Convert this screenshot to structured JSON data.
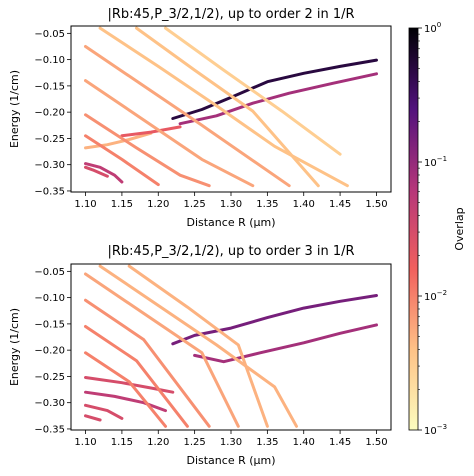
{
  "chart_data": [
    {
      "type": "line",
      "title": "|Rb:45,P_3/2,1/2), up to order 2 in 1/R",
      "xlabel": "Distance R (μm)",
      "ylabel": "Energy (1/cm)",
      "xlim": [
        1.08,
        1.52
      ],
      "ylim": [
        -0.352,
        -0.036
      ],
      "xticks": [
        "1.10",
        "1.15",
        "1.20",
        "1.25",
        "1.30",
        "1.35",
        "1.40",
        "1.45",
        "1.50"
      ],
      "yticks": [
        "-0.35",
        "-0.30",
        "-0.25",
        "-0.20",
        "-0.15",
        "-0.10",
        "-0.05"
      ],
      "series": [
        {
          "overlap": 0.5,
          "points": [
            [
              1.22,
              -0.212
            ],
            [
              1.26,
              -0.195
            ],
            [
              1.3,
              -0.172
            ],
            [
              1.35,
              -0.142
            ],
            [
              1.4,
              -0.126
            ],
            [
              1.45,
              -0.113
            ],
            [
              1.5,
              -0.101
            ]
          ]
        },
        {
          "overlap": 0.08,
          "points": [
            [
              1.23,
              -0.222
            ],
            [
              1.28,
              -0.207
            ],
            [
              1.33,
              -0.183
            ],
            [
              1.38,
              -0.164
            ],
            [
              1.44,
              -0.145
            ],
            [
              1.5,
              -0.127
            ]
          ]
        },
        {
          "overlap": 0.005,
          "points": [
            [
              1.1,
              -0.268
            ],
            [
              1.13,
              -0.262
            ],
            [
              1.16,
              -0.252
            ],
            [
              1.19,
              -0.24
            ]
          ]
        },
        {
          "overlap": 0.05,
          "points": [
            [
              1.1,
              -0.298
            ],
            [
              1.12,
              -0.305
            ],
            [
              1.14,
              -0.32
            ],
            [
              1.15,
              -0.333
            ]
          ]
        },
        {
          "overlap": 0.03,
          "points": [
            [
              1.1,
              -0.305
            ],
            [
              1.11,
              -0.31
            ],
            [
              1.13,
              -0.322
            ]
          ]
        },
        {
          "overlap": 0.02,
          "points": [
            [
              1.15,
              -0.245
            ],
            [
              1.19,
              -0.238
            ],
            [
              1.23,
              -0.228
            ]
          ]
        },
        {
          "overlap": 0.004,
          "points": [
            [
              1.12,
              -0.04
            ],
            [
              1.2,
              -0.113
            ],
            [
              1.28,
              -0.188
            ],
            [
              1.36,
              -0.265
            ],
            [
              1.46,
              -0.34
            ]
          ]
        },
        {
          "overlap": 0.004,
          "points": [
            [
              1.17,
              -0.04
            ],
            [
              1.25,
              -0.12
            ],
            [
              1.33,
              -0.198
            ],
            [
              1.42,
              -0.34
            ]
          ]
        },
        {
          "overlap": 0.003,
          "points": [
            [
              1.21,
              -0.04
            ],
            [
              1.29,
              -0.12
            ],
            [
              1.37,
              -0.198
            ],
            [
              1.45,
              -0.28
            ]
          ]
        },
        {
          "overlap": 0.006,
          "points": [
            [
              1.1,
              -0.075
            ],
            [
              1.18,
              -0.15
            ],
            [
              1.26,
              -0.225
            ],
            [
              1.38,
              -0.34
            ]
          ]
        },
        {
          "overlap": 0.006,
          "points": [
            [
              1.1,
              -0.14
            ],
            [
              1.18,
              -0.215
            ],
            [
              1.26,
              -0.29
            ],
            [
              1.33,
              -0.34
            ]
          ]
        },
        {
          "overlap": 0.008,
          "points": [
            [
              1.1,
              -0.205
            ],
            [
              1.17,
              -0.268
            ],
            [
              1.23,
              -0.32
            ],
            [
              1.27,
              -0.34
            ]
          ]
        },
        {
          "overlap": 0.01,
          "points": [
            [
              1.1,
              -0.245
            ],
            [
              1.15,
              -0.29
            ],
            [
              1.2,
              -0.338
            ]
          ]
        }
      ]
    },
    {
      "type": "line",
      "title": "|Rb:45,P_3/2,1/2), up to order 3 in 1/R",
      "xlabel": "Distance R (μm)",
      "ylabel": "Energy (1/cm)",
      "xlim": [
        1.08,
        1.52
      ],
      "ylim": [
        -0.352,
        -0.036
      ],
      "xticks": [
        "1.10",
        "1.15",
        "1.20",
        "1.25",
        "1.30",
        "1.35",
        "1.40",
        "1.45",
        "1.50"
      ],
      "yticks": [
        "-0.35",
        "-0.30",
        "-0.25",
        "-0.20",
        "-0.15",
        "-0.10",
        "-0.05"
      ],
      "series": [
        {
          "overlap": 0.15,
          "points": [
            [
              1.22,
              -0.188
            ],
            [
              1.25,
              -0.172
            ],
            [
              1.3,
              -0.158
            ],
            [
              1.35,
              -0.138
            ],
            [
              1.4,
              -0.12
            ],
            [
              1.45,
              -0.107
            ],
            [
              1.5,
              -0.096
            ]
          ]
        },
        {
          "overlap": 0.08,
          "points": [
            [
              1.25,
              -0.21
            ],
            [
              1.29,
              -0.222
            ],
            [
              1.34,
              -0.205
            ],
            [
              1.4,
              -0.186
            ],
            [
              1.45,
              -0.168
            ],
            [
              1.5,
              -0.152
            ]
          ]
        },
        {
          "overlap": 0.03,
          "points": [
            [
              1.1,
              -0.252
            ],
            [
              1.15,
              -0.262
            ],
            [
              1.19,
              -0.272
            ],
            [
              1.22,
              -0.28
            ]
          ]
        },
        {
          "overlap": 0.05,
          "points": [
            [
              1.1,
              -0.28
            ],
            [
              1.14,
              -0.288
            ],
            [
              1.18,
              -0.3
            ],
            [
              1.21,
              -0.315
            ]
          ]
        },
        {
          "overlap": 0.03,
          "points": [
            [
              1.1,
              -0.305
            ],
            [
              1.13,
              -0.315
            ],
            [
              1.15,
              -0.33
            ]
          ]
        },
        {
          "overlap": 0.03,
          "points": [
            [
              1.1,
              -0.325
            ],
            [
              1.12,
              -0.333
            ]
          ]
        },
        {
          "overlap": 0.005,
          "points": [
            [
              1.12,
              -0.04
            ],
            [
              1.2,
              -0.115
            ],
            [
              1.28,
              -0.19
            ],
            [
              1.36,
              -0.27
            ],
            [
              1.39,
              -0.345
            ]
          ]
        },
        {
          "overlap": 0.005,
          "points": [
            [
              1.16,
              -0.04
            ],
            [
              1.24,
              -0.118
            ],
            [
              1.31,
              -0.19
            ],
            [
              1.35,
              -0.345
            ]
          ]
        },
        {
          "overlap": 0.006,
          "points": [
            [
              1.1,
              -0.055
            ],
            [
              1.18,
              -0.13
            ],
            [
              1.26,
              -0.205
            ],
            [
              1.31,
              -0.345
            ]
          ]
        },
        {
          "overlap": 0.008,
          "points": [
            [
              1.1,
              -0.105
            ],
            [
              1.18,
              -0.18
            ],
            [
              1.27,
              -0.345
            ]
          ]
        },
        {
          "overlap": 0.01,
          "points": [
            [
              1.1,
              -0.155
            ],
            [
              1.17,
              -0.22
            ],
            [
              1.24,
              -0.345
            ]
          ]
        },
        {
          "overlap": 0.01,
          "points": [
            [
              1.1,
              -0.205
            ],
            [
              1.16,
              -0.26
            ],
            [
              1.21,
              -0.345
            ]
          ]
        }
      ]
    }
  ],
  "colorbar": {
    "label": "Overlap",
    "ticks": [
      {
        "value": 0.001,
        "base": "10",
        "exp": "−3"
      },
      {
        "value": 0.01,
        "base": "10",
        "exp": "−2"
      },
      {
        "value": 0.1,
        "base": "10",
        "exp": "−1"
      },
      {
        "value": 1,
        "base": "10",
        "exp": "0"
      }
    ],
    "range": [
      0.001,
      1
    ],
    "scale": "log",
    "colormap": "magma_r"
  }
}
